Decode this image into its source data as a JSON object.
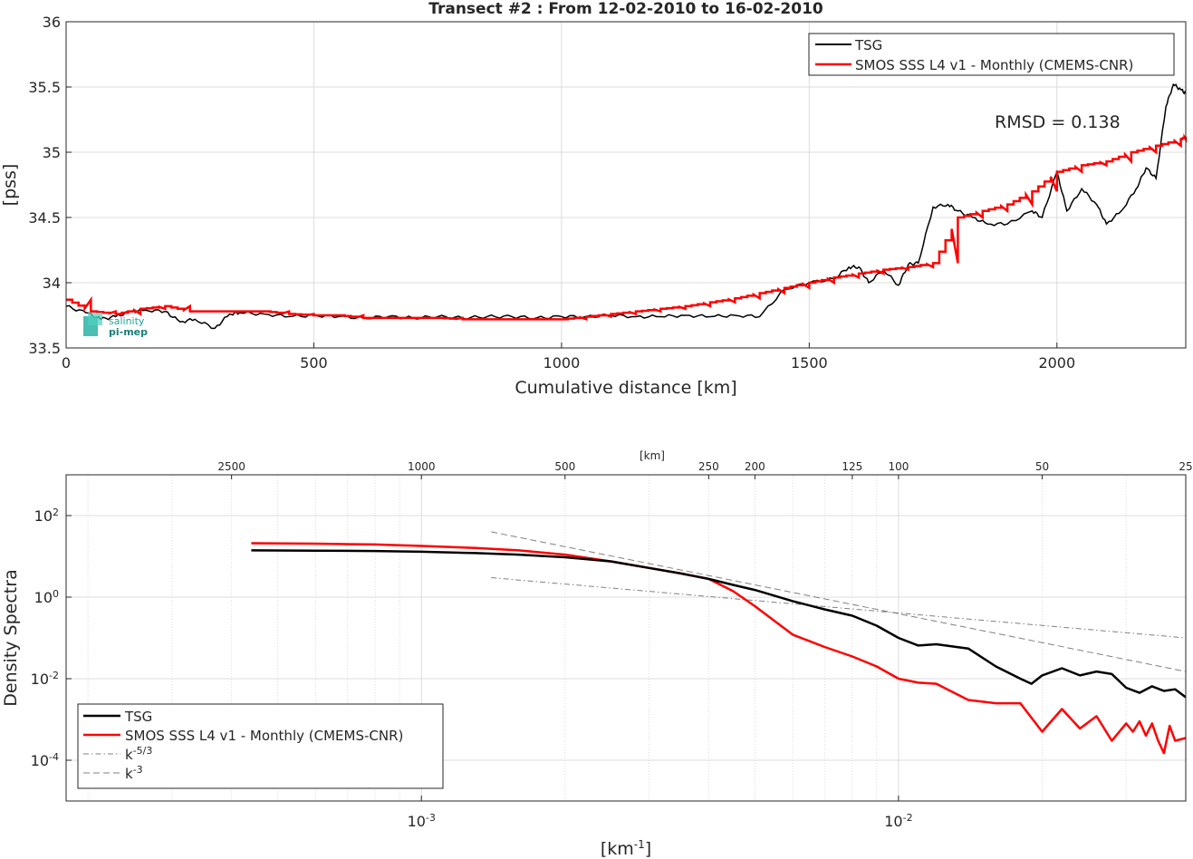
{
  "colors": {
    "tsg": "#000000",
    "smos": "#ff0000",
    "ref": "#808080",
    "grid": "#dcdcdc",
    "logo": "#1aa39a"
  },
  "logo": {
    "line1": "salinity",
    "line2": "pi-mep"
  },
  "chart_data": [
    {
      "type": "line",
      "title": "Transect #2 : From 12-02-2010 to 16-02-2010",
      "xlabel": "Cumulative distance [km]",
      "ylabel": "[pss]",
      "xlim": [
        0,
        2260
      ],
      "ylim": [
        33.5,
        36
      ],
      "xticks": [
        "0",
        "500",
        "1000",
        "1500",
        "2000"
      ],
      "yticks": [
        "33.5",
        "34",
        "34.5",
        "35",
        "35.5",
        "36"
      ],
      "grid": true,
      "legend": "top-right",
      "annotation": "RMSD = 0.138",
      "series": [
        {
          "name": "TSG",
          "x": [
            0,
            40,
            70,
            100,
            130,
            160,
            200,
            230,
            260,
            300,
            330,
            350,
            400,
            450,
            500,
            550,
            600,
            650,
            700,
            750,
            800,
            850,
            900,
            950,
            1000,
            1050,
            1100,
            1150,
            1200,
            1250,
            1300,
            1350,
            1400,
            1450,
            1500,
            1550,
            1580,
            1600,
            1620,
            1650,
            1680,
            1700,
            1720,
            1750,
            1780,
            1800,
            1830,
            1860,
            1900,
            1950,
            1970,
            2000,
            2020,
            2050,
            2080,
            2100,
            2130,
            2160,
            2180,
            2200,
            2220,
            2235,
            2250,
            2260
          ],
          "values": [
            33.82,
            33.77,
            33.72,
            33.74,
            33.78,
            33.79,
            33.78,
            33.7,
            33.72,
            33.65,
            33.76,
            33.77,
            33.76,
            33.74,
            33.75,
            33.74,
            33.73,
            33.74,
            33.73,
            33.74,
            33.73,
            33.74,
            33.74,
            33.73,
            33.74,
            33.74,
            33.75,
            33.74,
            33.74,
            33.75,
            33.74,
            33.75,
            33.74,
            33.95,
            34.0,
            34.03,
            34.12,
            34.12,
            34.0,
            34.1,
            33.98,
            34.14,
            34.15,
            34.58,
            34.6,
            34.55,
            34.5,
            34.45,
            34.45,
            34.55,
            34.5,
            34.85,
            34.55,
            34.72,
            34.6,
            34.45,
            34.55,
            34.72,
            34.88,
            34.8,
            35.35,
            35.52,
            35.48,
            35.45
          ]
        },
        {
          "name": "SMOS SSS L4 v1 - Monthly (CMEMS-CNR)",
          "x": [
            0,
            50,
            100,
            150,
            200,
            250,
            300,
            350,
            400,
            450,
            500,
            550,
            600,
            650,
            700,
            750,
            800,
            850,
            900,
            950,
            1000,
            1050,
            1100,
            1150,
            1200,
            1250,
            1300,
            1350,
            1400,
            1450,
            1500,
            1550,
            1600,
            1650,
            1700,
            1750,
            1800,
            1850,
            1900,
            1950,
            2000,
            2050,
            2100,
            2150,
            2200,
            2250,
            2260
          ],
          "values": [
            33.87,
            33.78,
            33.76,
            33.8,
            33.82,
            33.78,
            33.78,
            33.78,
            33.78,
            33.76,
            33.75,
            33.75,
            33.73,
            33.73,
            33.73,
            33.73,
            33.72,
            33.72,
            33.72,
            33.72,
            33.72,
            33.74,
            33.76,
            33.78,
            33.8,
            33.82,
            33.85,
            33.88,
            33.92,
            33.96,
            34.0,
            34.04,
            34.07,
            34.1,
            34.12,
            34.15,
            34.5,
            34.55,
            34.6,
            34.7,
            34.85,
            34.9,
            34.93,
            35.0,
            35.05,
            35.1,
            35.12
          ]
        }
      ]
    },
    {
      "type": "line",
      "title": "",
      "xlabel": "[km",
      "xlabel_sup": "-1",
      "xlabel_end": "]",
      "ylabel": "Density Spectra",
      "xscale": "log",
      "yscale": "log",
      "xlim": [
        0.00018,
        0.04
      ],
      "ylim": [
        1e-05,
        1000
      ],
      "top_axis_label": "[km]",
      "top_ticks": [
        "2500",
        "1000",
        "500",
        "250",
        "200",
        "125",
        "100",
        "50",
        "25"
      ],
      "xticks": [
        {
          "base": "10",
          "exp": "-3"
        },
        {
          "base": "10",
          "exp": "-2"
        }
      ],
      "yticks": [
        {
          "base": "10",
          "exp": "-4"
        },
        {
          "base": "10",
          "exp": "-2"
        },
        {
          "base": "10",
          "exp": "0"
        },
        {
          "base": "10",
          "exp": "2"
        }
      ],
      "grid": true,
      "legend": "bottom-left",
      "series": [
        {
          "name": "TSG",
          "x": [
            0.00044,
            0.0006,
            0.0008,
            0.001,
            0.0013,
            0.0016,
            0.002,
            0.0025,
            0.003,
            0.0035,
            0.004,
            0.0045,
            0.005,
            0.006,
            0.007,
            0.008,
            0.009,
            0.01,
            0.011,
            0.012,
            0.014,
            0.016,
            0.018,
            0.019,
            0.02,
            0.022,
            0.024,
            0.026,
            0.028,
            0.03,
            0.032,
            0.034,
            0.036,
            0.038,
            0.04
          ],
          "values": [
            14,
            13.8,
            13.5,
            13,
            12,
            11,
            9.5,
            7.5,
            5.2,
            3.8,
            2.8,
            2.0,
            1.5,
            0.8,
            0.5,
            0.35,
            0.2,
            0.1,
            0.065,
            0.07,
            0.055,
            0.02,
            0.01,
            0.0075,
            0.012,
            0.018,
            0.012,
            0.015,
            0.013,
            0.006,
            0.0045,
            0.0065,
            0.005,
            0.0055,
            0.0035
          ]
        },
        {
          "name": "SMOS SSS L4 v1 - Monthly (CMEMS-CNR)",
          "x": [
            0.00044,
            0.0006,
            0.0008,
            0.001,
            0.0013,
            0.0016,
            0.002,
            0.0025,
            0.003,
            0.0035,
            0.004,
            0.0045,
            0.005,
            0.006,
            0.007,
            0.008,
            0.009,
            0.01,
            0.011,
            0.012,
            0.014,
            0.016,
            0.018,
            0.02,
            0.022,
            0.024,
            0.026,
            0.028,
            0.03,
            0.031,
            0.032,
            0.033,
            0.034,
            0.035,
            0.036,
            0.037,
            0.038,
            0.04
          ],
          "values": [
            21,
            20.5,
            19.5,
            18,
            16,
            14,
            11,
            7.5,
            5.2,
            3.8,
            2.8,
            1.4,
            0.6,
            0.12,
            0.06,
            0.035,
            0.02,
            0.01,
            0.008,
            0.0075,
            0.003,
            0.0025,
            0.0025,
            0.0005,
            0.0018,
            0.0006,
            0.0012,
            0.0003,
            0.0008,
            0.0005,
            0.0009,
            0.0004,
            0.0008,
            0.0003,
            0.00015,
            0.0007,
            0.0003,
            0.00035
          ]
        },
        {
          "name": "k-5/3",
          "display_name": "k",
          "display_sup": "-5/3",
          "x": [
            0.0014,
            0.04
          ],
          "values": [
            3.0,
            0.1
          ]
        },
        {
          "name": "k-3",
          "display_name": "k",
          "display_sup": "-3",
          "x": [
            0.0014,
            0.04
          ],
          "values": [
            40,
            0.015
          ]
        }
      ]
    }
  ]
}
